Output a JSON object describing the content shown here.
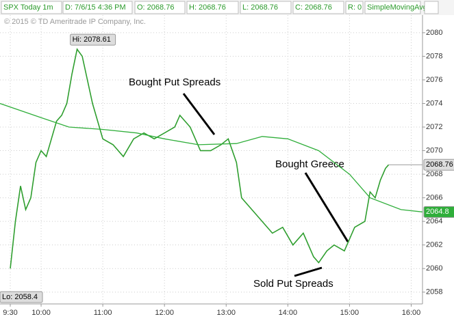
{
  "chart_data": {
    "type": "line",
    "title": "SPX Today 1m",
    "header_fields": [
      "D: 7/6/15 4:36 PM",
      "O: 2068.76",
      "H: 2068.76",
      "L: 2068.76",
      "C: 2068.76",
      "R: 0",
      "SimpleMovingAvg ..."
    ],
    "copyright": "© 2015 © TD Ameritrade IP Company, Inc.",
    "high_label": "Hi: 2078.61",
    "low_label": "Lo: 2058.4",
    "last_price_label": "2068.76",
    "sma_label": "2064.8",
    "annotations": [
      "Bought Put Spreads",
      "Bought Greece",
      "Sold Put Spreads"
    ],
    "xlim": [
      560,
      971
    ],
    "xticks": [
      {
        "value": 570,
        "label": "9:30"
      },
      {
        "value": 600,
        "label": "10:00"
      },
      {
        "value": 660,
        "label": "11:00"
      },
      {
        "value": 720,
        "label": "12:00"
      },
      {
        "value": 780,
        "label": "13:00"
      },
      {
        "value": 840,
        "label": "14:00"
      },
      {
        "value": 900,
        "label": "15:00"
      },
      {
        "value": 960,
        "label": "16:00"
      }
    ],
    "ylim": [
      2057,
      2081.5
    ],
    "yticks": [
      2058,
      2060,
      2062,
      2064,
      2066,
      2068,
      2070,
      2072,
      2074,
      2076,
      2078,
      2080
    ],
    "grid": true,
    "series": [
      {
        "name": "SPX",
        "color": "#2e9e2e",
        "x": [
          570,
          575,
          580,
          585,
          590,
          595,
          600,
          605,
          610,
          615,
          620,
          625,
          630,
          635,
          640,
          645,
          650,
          655,
          660,
          670,
          680,
          690,
          700,
          710,
          720,
          730,
          735,
          745,
          755,
          765,
          775,
          782,
          790,
          795,
          805,
          815,
          825,
          835,
          845,
          855,
          865,
          870,
          878,
          885,
          895,
          905,
          915,
          920,
          925,
          930,
          935,
          938
        ],
        "values": [
          2060,
          2064,
          2067,
          2065,
          2066,
          2069,
          2070,
          2069.5,
          2071,
          2072.5,
          2073,
          2074,
          2076.5,
          2078.6,
          2078,
          2076,
          2074,
          2072.5,
          2071,
          2070.5,
          2069.5,
          2071,
          2071.5,
          2071,
          2071.5,
          2072,
          2073,
          2072,
          2070,
          2070,
          2070.5,
          2071,
          2069,
          2066,
          2065,
          2064,
          2063,
          2063.5,
          2062,
          2063,
          2061,
          2060.5,
          2061.5,
          2062,
          2061.5,
          2063.5,
          2064,
          2066.5,
          2066,
          2067.5,
          2068.5,
          2068.8
        ]
      },
      {
        "name": "SimpleMovingAvg",
        "color": "#2fae3a",
        "x": [
          560,
          600,
          627,
          660,
          693,
          720,
          753,
          790,
          815,
          840,
          870,
          900,
          920,
          950,
          971
        ],
        "values": [
          2074,
          2072.8,
          2072,
          2071.8,
          2071.5,
          2071,
          2070.5,
          2070.6,
          2071.2,
          2071,
          2070,
          2068,
          2066,
          2065,
          2064.8
        ]
      }
    ]
  }
}
